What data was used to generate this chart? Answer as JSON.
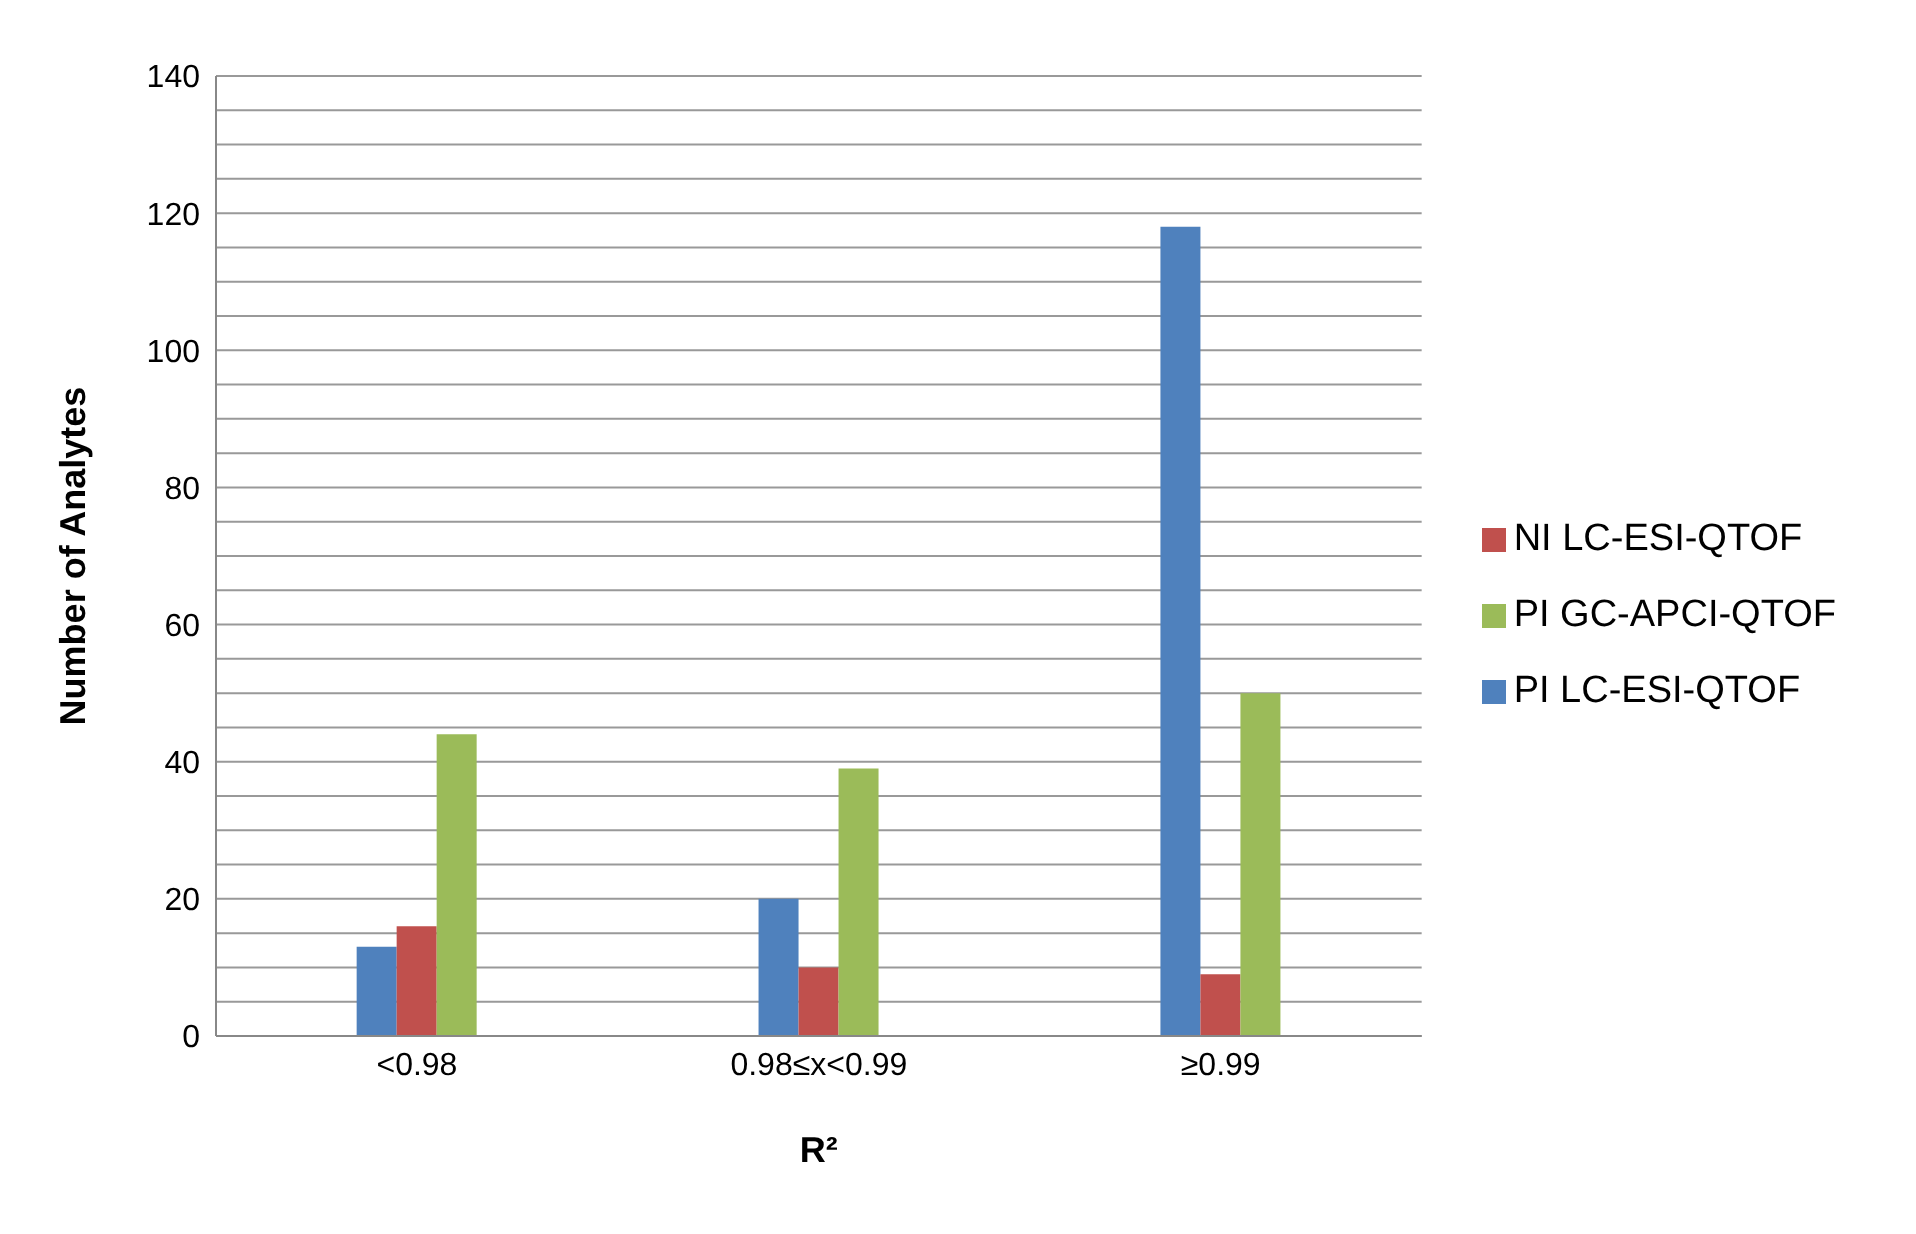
{
  "chart_data": {
    "type": "bar",
    "xlabel": "R²",
    "ylabel": "Number of Analytes",
    "categories": [
      "<0.98",
      "0.98≤x<0.99",
      "≥0.99"
    ],
    "series": [
      {
        "name": "PI LC-ESI-QTOF",
        "color": "#4f81bd",
        "values": [
          13,
          20,
          118
        ]
      },
      {
        "name": "NI LC-ESI-QTOF",
        "color": "#c0504d",
        "values": [
          16,
          10,
          9
        ]
      },
      {
        "name": "PI GC-APCI-QTOF",
        "color": "#9bbb59",
        "values": [
          44,
          39,
          50
        ]
      }
    ],
    "ylim": [
      0,
      140
    ],
    "yticks": [
      0,
      {
        "value": 5,
        "label": null
      },
      {
        "value": 10,
        "label": null
      },
      {
        "value": 15,
        "label": null
      },
      20,
      {
        "value": 25,
        "label": null
      },
      {
        "value": 30,
        "label": null
      },
      {
        "value": 35,
        "label": null
      },
      40,
      {
        "value": 45,
        "label": null
      },
      {
        "value": 50,
        "label": null
      },
      {
        "value": 55,
        "label": null
      },
      60,
      {
        "value": 65,
        "label": null
      },
      {
        "value": 70,
        "label": null
      },
      {
        "value": 75,
        "label": null
      },
      80,
      {
        "value": 85,
        "label": null
      },
      {
        "value": 90,
        "label": null
      },
      {
        "value": 95,
        "label": null
      },
      100,
      {
        "value": 105,
        "label": null
      },
      {
        "value": 110,
        "label": null
      },
      {
        "value": 115,
        "label": null
      },
      120,
      {
        "value": 125,
        "label": null
      },
      {
        "value": 130,
        "label": null
      },
      {
        "value": 135,
        "label": null
      },
      140
    ],
    "grid": "y",
    "legend": "right"
  }
}
